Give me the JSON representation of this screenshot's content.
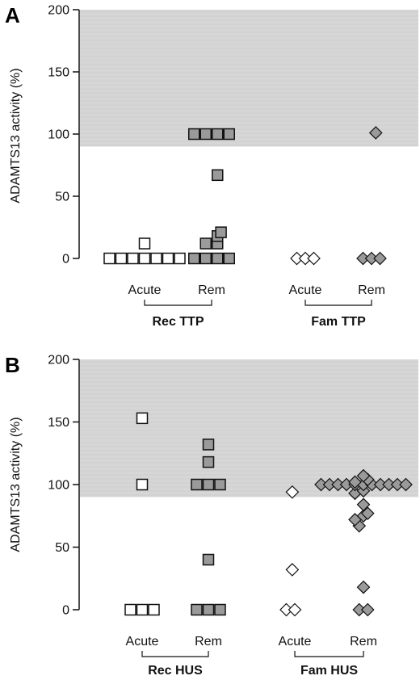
{
  "colors": {
    "band": "#d6d6d6",
    "filled_marker": "#9a9a9a",
    "open_marker": "#ffffff",
    "stroke": "#111111"
  },
  "chart_data": [
    {
      "panel_label": "A",
      "type": "scatter",
      "ylabel": "ADAMTS13 activity (%)",
      "ylim": [
        0,
        200
      ],
      "yticks": [
        0,
        50,
        100,
        150,
        200
      ],
      "shaded_band": [
        90,
        200
      ],
      "categories": [
        "Acute",
        "Rem",
        "Acute",
        "Rem"
      ],
      "groups": [
        {
          "label": "Rec TTP",
          "categories": [
            0,
            1
          ]
        },
        {
          "label": "Fam TTP",
          "categories": [
            2,
            3
          ]
        }
      ],
      "series": [
        {
          "category": 0,
          "marker": "square",
          "fill": "open",
          "points": [
            [
              0,
              -3
            ],
            [
              0,
              -2
            ],
            [
              0,
              -1
            ],
            [
              0,
              0
            ],
            [
              0,
              1
            ],
            [
              0,
              2
            ],
            [
              0,
              3
            ],
            [
              12,
              0
            ]
          ]
        },
        {
          "category": 1,
          "marker": "square",
          "fill": "filled",
          "points": [
            [
              0,
              -1.5
            ],
            [
              0,
              -0.5
            ],
            [
              0,
              0.5
            ],
            [
              0,
              1.5
            ],
            [
              12,
              -0.5
            ],
            [
              12,
              0.5
            ],
            [
              18,
              0.5
            ],
            [
              21,
              0.8
            ],
            [
              67,
              0.5
            ],
            [
              100,
              -1.5
            ],
            [
              100,
              -0.5
            ],
            [
              100,
              0.5
            ],
            [
              100,
              1.5
            ]
          ]
        },
        {
          "category": 2,
          "marker": "diamond",
          "fill": "open",
          "points": [
            [
              0,
              -1
            ],
            [
              0,
              0
            ],
            [
              0,
              1
            ]
          ]
        },
        {
          "category": 3,
          "marker": "diamond",
          "fill": "filled",
          "points": [
            [
              0,
              -1
            ],
            [
              0,
              0
            ],
            [
              0,
              1
            ],
            [
              101,
              0.5
            ]
          ]
        }
      ]
    },
    {
      "panel_label": "B",
      "type": "scatter",
      "ylabel": "ADAMTS13 activity (%)",
      "ylim": [
        0,
        200
      ],
      "yticks": [
        0,
        50,
        100,
        150,
        200
      ],
      "shaded_band": [
        90,
        200
      ],
      "categories": [
        "Acute",
        "Rem",
        "Acute",
        "Rem"
      ],
      "groups": [
        {
          "label": "Rec HUS",
          "categories": [
            0,
            1
          ]
        },
        {
          "label": "Fam HUS",
          "categories": [
            2,
            3
          ]
        }
      ],
      "series": [
        {
          "category": 0,
          "marker": "square",
          "fill": "open",
          "points": [
            [
              0,
              -1
            ],
            [
              0,
              0
            ],
            [
              0,
              1
            ],
            [
              100,
              0
            ],
            [
              153,
              0
            ]
          ]
        },
        {
          "category": 1,
          "marker": "square",
          "fill": "filled",
          "points": [
            [
              0,
              -1
            ],
            [
              0,
              0
            ],
            [
              0,
              1
            ],
            [
              40,
              0
            ],
            [
              100,
              -1
            ],
            [
              100,
              0
            ],
            [
              100,
              1
            ],
            [
              118,
              0
            ],
            [
              132,
              0
            ]
          ]
        },
        {
          "category": 2,
          "marker": "diamond",
          "fill": "open",
          "points": [
            [
              0,
              -1
            ],
            [
              0,
              0
            ],
            [
              32,
              -0.3
            ],
            [
              94,
              -0.3
            ]
          ]
        },
        {
          "category": 3,
          "marker": "diamond",
          "fill": "filled",
          "points": [
            [
              0,
              -0.5
            ],
            [
              0,
              0.5
            ],
            [
              18,
              0
            ],
            [
              67,
              -0.5
            ],
            [
              72,
              -1
            ],
            [
              75,
              0
            ],
            [
              77,
              0.5
            ],
            [
              84,
              0
            ],
            [
              93,
              -1
            ],
            [
              95,
              0
            ],
            [
              100,
              -5
            ],
            [
              100,
              -4
            ],
            [
              100,
              -3
            ],
            [
              100,
              -2
            ],
            [
              100,
              -1
            ],
            [
              100,
              0
            ],
            [
              100,
              1
            ],
            [
              100,
              2
            ],
            [
              100,
              3
            ],
            [
              100,
              4
            ],
            [
              100,
              5
            ],
            [
              102,
              -1
            ],
            [
              104,
              0.5
            ],
            [
              107,
              0
            ]
          ]
        }
      ]
    }
  ]
}
